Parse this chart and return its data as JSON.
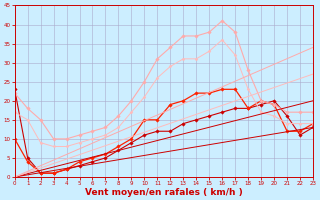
{
  "bg_color": "#cceeff",
  "grid_color": "#aaaacc",
  "xlabel": "Vent moyen/en rafales ( km/h )",
  "xlabel_color": "#cc0000",
  "xlabel_fontsize": 6.5,
  "tick_color": "#cc0000",
  "ylim": [
    0,
    45
  ],
  "xlim": [
    0,
    23
  ],
  "yticks": [
    0,
    5,
    10,
    15,
    20,
    25,
    30,
    35,
    40,
    45
  ],
  "xticks": [
    0,
    1,
    2,
    3,
    4,
    5,
    6,
    7,
    8,
    9,
    10,
    11,
    12,
    13,
    14,
    15,
    16,
    17,
    18,
    19,
    20,
    21,
    22,
    23
  ],
  "series": [
    {
      "x": [
        0,
        1,
        2,
        3,
        4,
        5,
        6,
        7,
        8,
        9,
        10,
        11,
        12,
        13,
        14,
        15,
        16,
        17,
        18,
        19,
        20,
        21,
        22,
        23
      ],
      "y": [
        23,
        5,
        1,
        1,
        2,
        3,
        4,
        5,
        7,
        9,
        11,
        12,
        12,
        14,
        15,
        16,
        17,
        18,
        18,
        19,
        20,
        16,
        11,
        13
      ],
      "color": "#cc0000",
      "marker": "D",
      "markersize": 1.8,
      "linewidth": 0.8,
      "linestyle": "-"
    },
    {
      "x": [
        0,
        1,
        2,
        3,
        4,
        5,
        6,
        7,
        8,
        9,
        10,
        11,
        12,
        13,
        14,
        15,
        16,
        17,
        18,
        19,
        20,
        21,
        22,
        23
      ],
      "y": [
        10,
        4,
        1,
        1,
        2,
        4,
        5,
        6,
        8,
        10,
        15,
        15,
        19,
        20,
        22,
        22,
        23,
        23,
        18,
        20,
        19,
        12,
        12,
        14
      ],
      "color": "#ff2200",
      "marker": "D",
      "markersize": 1.8,
      "linewidth": 0.9,
      "linestyle": "-"
    },
    {
      "x": [
        0,
        1,
        2,
        3,
        4,
        5,
        6,
        7,
        8,
        9,
        10,
        11,
        12,
        13,
        14,
        15,
        16,
        17,
        18,
        19,
        20,
        21,
        22,
        23
      ],
      "y": [
        22,
        18,
        15,
        10,
        10,
        11,
        12,
        13,
        16,
        20,
        25,
        31,
        34,
        37,
        37,
        38,
        41,
        38,
        28,
        20,
        19,
        17,
        17,
        17
      ],
      "color": "#ffaaaa",
      "marker": "D",
      "markersize": 1.8,
      "linewidth": 0.8,
      "linestyle": "-"
    },
    {
      "x": [
        0,
        1,
        2,
        3,
        4,
        5,
        6,
        7,
        8,
        9,
        10,
        11,
        12,
        13,
        14,
        15,
        16,
        17,
        18,
        19,
        20,
        21,
        22,
        23
      ],
      "y": [
        17,
        15,
        9,
        8,
        8,
        9,
        10,
        11,
        13,
        17,
        21,
        26,
        29,
        31,
        31,
        33,
        36,
        32,
        23,
        17,
        16,
        14,
        14,
        14
      ],
      "color": "#ffbbbb",
      "marker": "D",
      "markersize": 1.5,
      "linewidth": 0.7,
      "linestyle": "-"
    },
    {
      "x": [
        0,
        23
      ],
      "y": [
        0,
        13
      ],
      "color": "#cc0000",
      "marker": null,
      "markersize": 0,
      "linewidth": 0.7,
      "linestyle": "-"
    },
    {
      "x": [
        0,
        23
      ],
      "y": [
        0,
        20
      ],
      "color": "#cc0000",
      "marker": null,
      "markersize": 0,
      "linewidth": 0.7,
      "linestyle": "-"
    },
    {
      "x": [
        0,
        23
      ],
      "y": [
        0,
        34
      ],
      "color": "#ffaaaa",
      "marker": null,
      "markersize": 0,
      "linewidth": 0.7,
      "linestyle": "-"
    },
    {
      "x": [
        0,
        23
      ],
      "y": [
        0,
        27
      ],
      "color": "#ffbbbb",
      "marker": null,
      "markersize": 0,
      "linewidth": 0.7,
      "linestyle": "-"
    }
  ]
}
